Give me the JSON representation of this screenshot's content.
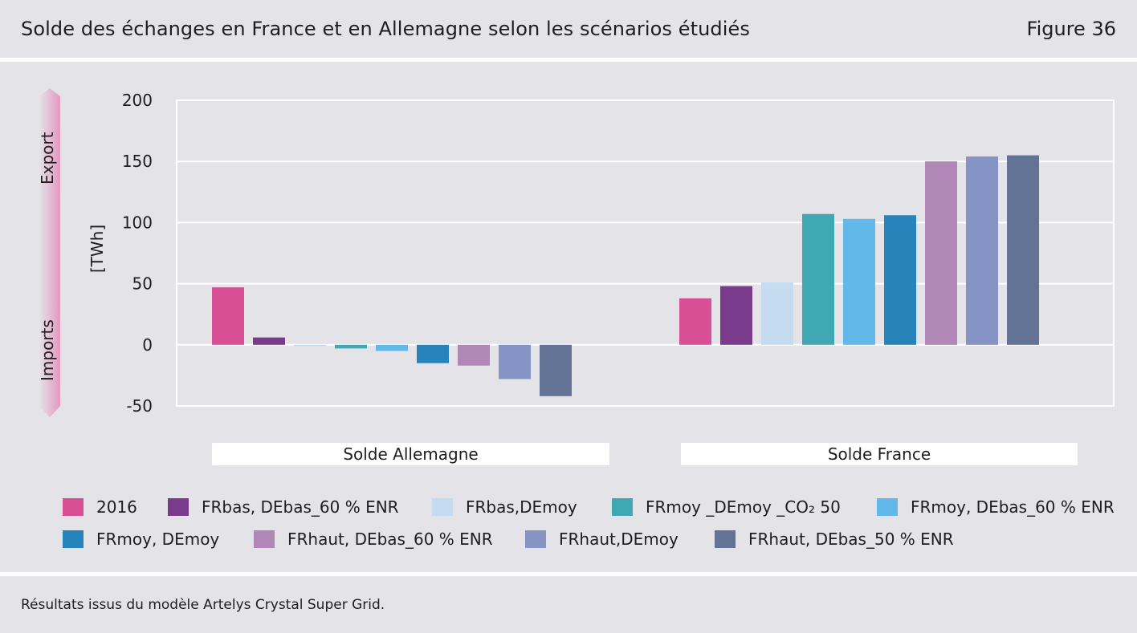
{
  "header": {
    "title": "Solde des échanges en France et en Allemagne selon les scénarios étudiés",
    "figure": "Figure 36"
  },
  "footer": {
    "note": "Résultats issus du modèle Artelys Crystal Super Grid."
  },
  "arrow": {
    "top_label": "Export",
    "bottom_label": "Imports"
  },
  "chart_data": {
    "type": "bar",
    "ylabel": "[TWh]",
    "ylim": [
      -50,
      200
    ],
    "yticks": [
      200,
      150,
      100,
      50,
      0,
      -50
    ],
    "grid": true,
    "legend_position": "bottom",
    "groups": [
      "Solde Allemagne",
      "Solde France"
    ],
    "series": [
      {
        "name": "2016",
        "color": "#d84f96",
        "values": [
          47,
          38
        ]
      },
      {
        "name": "FRbas, DEbas_60 % ENR",
        "color": "#7a3b8c",
        "values": [
          6,
          48
        ]
      },
      {
        "name": "FRbas,DEmoy",
        "color": "#c5dcf0",
        "values": [
          -1,
          51
        ]
      },
      {
        "name": "FRmoy _DEmoy _CO₂ 50",
        "color": "#3fa8b3",
        "values": [
          -3,
          107
        ]
      },
      {
        "name": "FRmoy, DEbas_60 % ENR",
        "color": "#62b8e8",
        "values": [
          -5,
          103
        ]
      },
      {
        "name": "FRmoy, DEmoy",
        "color": "#2684ba",
        "values": [
          -15,
          106
        ]
      },
      {
        "name": "FRhaut, DEbas_60 % ENR",
        "color": "#b087b6",
        "values": [
          -17,
          150
        ]
      },
      {
        "name": "FRhaut,DEmoy",
        "color": "#8593c5",
        "values": [
          -28,
          154
        ]
      },
      {
        "name": "FRhaut, DEbas_50 % ENR",
        "color": "#627395",
        "values": [
          -42,
          155
        ]
      }
    ]
  }
}
